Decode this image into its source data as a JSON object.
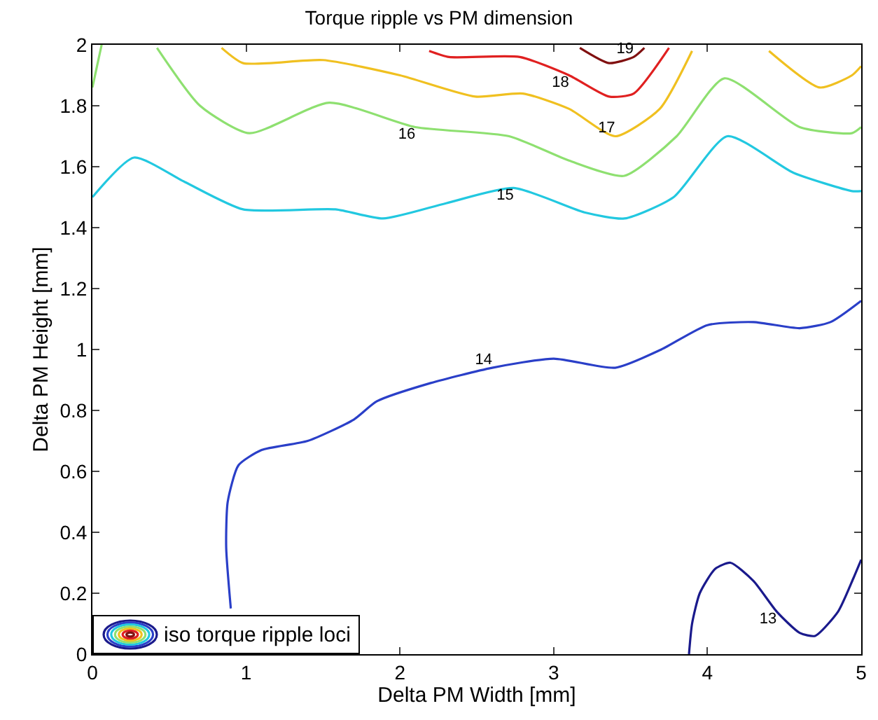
{
  "chart_data": {
    "type": "line",
    "title": "Torque ripple vs PM dimension",
    "xlabel": "Delta PM Width [mm]",
    "ylabel": "Delta PM Height [mm]",
    "annotations": [
      "iso torque ripple loci"
    ],
    "grid": false,
    "marker": "none",
    "line_style": "solid",
    "xlim": [
      0,
      5
    ],
    "xticks": [
      0,
      1,
      2,
      3,
      4,
      5
    ],
    "ylim": [
      0,
      2
    ],
    "yticks": [
      0,
      0.2,
      0.4,
      0.6,
      0.8,
      1,
      1.2,
      1.4,
      1.6,
      1.8,
      2
    ],
    "series": [
      {
        "name": "13",
        "color": "#1a1a8c",
        "x": [
          3.88,
          3.9,
          3.95,
          4.05,
          4.15,
          4.3,
          4.45,
          4.6,
          4.7,
          4.85,
          4.95,
          5
        ],
        "values": [
          0,
          0.1,
          0.2,
          0.28,
          0.3,
          0.24,
          0.14,
          0.07,
          0.06,
          0.14,
          0.25,
          0.31
        ]
      },
      {
        "name": "14",
        "color": "#2a3fc8",
        "x": [
          0.9,
          0.87,
          0.88,
          0.95,
          1.1,
          1.4,
          1.7,
          1.85,
          2.2,
          2.6,
          3.0,
          3.4,
          3.7,
          4.0,
          4.3,
          4.6,
          4.8,
          5
        ],
        "values": [
          0.15,
          0.35,
          0.5,
          0.62,
          0.67,
          0.7,
          0.77,
          0.83,
          0.89,
          0.94,
          0.97,
          0.94,
          1.0,
          1.08,
          1.09,
          1.07,
          1.09,
          1.16
        ]
      },
      {
        "name": "15",
        "color": "#22c8e0",
        "x": [
          0,
          0.27,
          0.6,
          0.98,
          1.58,
          1.89,
          2.3,
          2.74,
          3.2,
          3.46,
          3.78,
          4.13,
          4.56,
          4.94,
          5
        ],
        "values": [
          1.5,
          1.63,
          1.55,
          1.46,
          1.46,
          1.43,
          1.48,
          1.53,
          1.45,
          1.43,
          1.5,
          1.7,
          1.58,
          1.52,
          1.52
        ]
      },
      {
        "name": "16",
        "color": "#8ee070",
        "x": [
          0,
          0.03,
          0.06,
          0.2,
          0.42,
          0.7,
          1.02,
          1.54,
          2.1,
          2.71,
          3.1,
          3.46,
          3.8,
          4.11,
          4.6,
          4.94,
          5
        ],
        "values": [
          1.86,
          1.93,
          2,
          null,
          1.99,
          1.8,
          1.71,
          1.81,
          1.73,
          1.7,
          1.62,
          1.57,
          1.7,
          1.89,
          1.73,
          1.71,
          1.73
        ]
      },
      {
        "name": "17",
        "color": "#f0c020",
        "x": [
          0.84,
          0.98,
          1.5,
          2.0,
          2.49,
          2.8,
          3.1,
          3.4,
          3.69,
          3.9,
          4.15,
          4.4,
          4.73,
          4.94,
          5
        ],
        "values": [
          1.99,
          1.94,
          1.95,
          1.9,
          1.83,
          1.84,
          1.79,
          1.7,
          1.79,
          1.98,
          null,
          1.98,
          1.86,
          1.9,
          1.93
        ]
      },
      {
        "name": "18",
        "color": "#e02020",
        "x": [
          2.19,
          2.32,
          2.78,
          3.1,
          3.36,
          3.52,
          3.75
        ],
        "values": [
          1.98,
          1.96,
          1.96,
          1.9,
          1.83,
          1.84,
          1.99
        ]
      },
      {
        "name": "19",
        "color": "#801010",
        "x": [
          3.17,
          3.36,
          3.52,
          3.59
        ],
        "values": [
          1.99,
          1.94,
          1.96,
          1.99
        ]
      }
    ]
  }
}
